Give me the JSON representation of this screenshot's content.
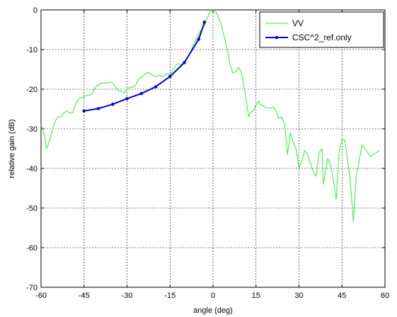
{
  "chart_data": {
    "type": "line",
    "title": "",
    "xlabel": "angle (deg)",
    "ylabel": "relative gain (dB)",
    "xlim": [
      -60,
      60
    ],
    "ylim": [
      -70,
      0
    ],
    "xticks": [
      -60,
      -45,
      -30,
      -15,
      0,
      15,
      30,
      45,
      60
    ],
    "yticks": [
      0,
      -10,
      -20,
      -30,
      -40,
      -50,
      -60,
      -70
    ],
    "grid": true,
    "legend_position": "top-right",
    "series": [
      {
        "name": "VV",
        "color": "#33ee33",
        "marker": "none",
        "points": [
          [
            -60,
            -29
          ],
          [
            -59,
            -31
          ],
          [
            -58,
            -35
          ],
          [
            -57,
            -33
          ],
          [
            -56,
            -30
          ],
          [
            -55,
            -28
          ],
          [
            -54,
            -27
          ],
          [
            -53,
            -27
          ],
          [
            -52,
            -26
          ],
          [
            -51,
            -25.5
          ],
          [
            -50,
            -26
          ],
          [
            -49,
            -26
          ],
          [
            -48,
            -24
          ],
          [
            -47,
            -22.5
          ],
          [
            -46,
            -22
          ],
          [
            -45,
            -22
          ],
          [
            -44,
            -21.5
          ],
          [
            -43,
            -21.5
          ],
          [
            -42,
            -21
          ],
          [
            -41,
            -19.5
          ],
          [
            -40,
            -19
          ],
          [
            -39,
            -18.5
          ],
          [
            -38,
            -18.5
          ],
          [
            -37,
            -18.5
          ],
          [
            -36,
            -18.2
          ],
          [
            -35,
            -18.5
          ],
          [
            -34,
            -19.5
          ],
          [
            -33,
            -20.5
          ],
          [
            -32,
            -20.5
          ],
          [
            -31,
            -21
          ],
          [
            -30,
            -20
          ],
          [
            -29,
            -19.5
          ],
          [
            -28,
            -19.5
          ],
          [
            -27,
            -19
          ],
          [
            -26,
            -17.5
          ],
          [
            -25,
            -17
          ],
          [
            -24,
            -16.5
          ],
          [
            -23,
            -15.8
          ],
          [
            -22,
            -16
          ],
          [
            -21,
            -16.5
          ],
          [
            -20,
            -16.8
          ],
          [
            -19,
            -16.5
          ],
          [
            -18,
            -16.8
          ],
          [
            -17,
            -16.5
          ],
          [
            -16,
            -16
          ],
          [
            -15,
            -16.5
          ],
          [
            -14,
            -15
          ],
          [
            -13,
            -14
          ],
          [
            -12,
            -13.5
          ],
          [
            -11,
            -14
          ],
          [
            -10,
            -13
          ],
          [
            -9,
            -12
          ],
          [
            -8,
            -11
          ],
          [
            -7,
            -9
          ],
          [
            -6,
            -7.5
          ],
          [
            -5,
            -6
          ],
          [
            -4,
            -5
          ],
          [
            -3,
            -4
          ],
          [
            -2,
            -2
          ],
          [
            -1,
            -0.5
          ],
          [
            0,
            0
          ],
          [
            1,
            -0.5
          ],
          [
            2,
            -2
          ],
          [
            3,
            -4
          ],
          [
            4,
            -7
          ],
          [
            5,
            -10
          ],
          [
            6,
            -14
          ],
          [
            7,
            -16
          ],
          [
            8,
            -15.5
          ],
          [
            9,
            -14.5
          ],
          [
            10,
            -16
          ],
          [
            11,
            -20
          ],
          [
            12,
            -25
          ],
          [
            12.5,
            -27
          ],
          [
            13,
            -26
          ],
          [
            14,
            -25.5
          ],
          [
            15,
            -24
          ],
          [
            16,
            -23
          ],
          [
            16.5,
            -24
          ],
          [
            17,
            -24
          ],
          [
            18,
            -24.5
          ],
          [
            19,
            -24.8
          ],
          [
            20,
            -24.8
          ],
          [
            21,
            -24.5
          ],
          [
            22,
            -25.5
          ],
          [
            23,
            -27.5
          ],
          [
            24,
            -27
          ],
          [
            25,
            -29
          ],
          [
            26,
            -36.5
          ],
          [
            27,
            -31
          ],
          [
            28,
            -33.5
          ],
          [
            29,
            -35
          ],
          [
            30,
            -40
          ],
          [
            31,
            -38
          ],
          [
            32,
            -35.5
          ],
          [
            33,
            -36.5
          ],
          [
            34,
            -38.5
          ],
          [
            35,
            -41
          ],
          [
            36,
            -42
          ],
          [
            37,
            -36
          ],
          [
            38,
            -35
          ],
          [
            38.5,
            -44
          ],
          [
            39,
            -42
          ],
          [
            40,
            -37.5
          ],
          [
            41,
            -39
          ],
          [
            42,
            -43
          ],
          [
            43,
            -47.8
          ],
          [
            44,
            -36
          ],
          [
            45,
            -32.5
          ],
          [
            46,
            -33
          ],
          [
            47,
            -38
          ],
          [
            48,
            -44
          ],
          [
            49,
            -53.5
          ],
          [
            50,
            -42
          ],
          [
            51,
            -38
          ],
          [
            52,
            -34
          ],
          [
            53,
            -35
          ],
          [
            54,
            -36
          ],
          [
            55,
            -37
          ],
          [
            56,
            -36.5
          ],
          [
            57,
            -36
          ],
          [
            58,
            -35.5
          ]
        ]
      },
      {
        "name": "CSC^2_ref.only",
        "color": "#0000cc",
        "marker": "dot",
        "points": [
          [
            -45,
            -25.5
          ],
          [
            -40,
            -24.9
          ],
          [
            -35,
            -23.8
          ],
          [
            -30,
            -22.4
          ],
          [
            -25,
            -21.1
          ],
          [
            -20,
            -19.4
          ],
          [
            -15,
            -16.8
          ],
          [
            -10,
            -13.3
          ],
          [
            -5,
            -7.4
          ],
          [
            -3,
            -3.1
          ]
        ]
      }
    ]
  }
}
